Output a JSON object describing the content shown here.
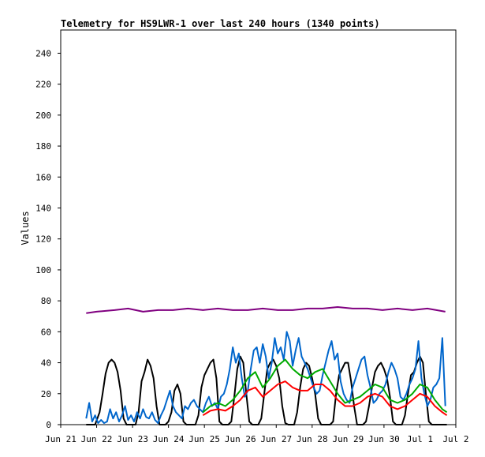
{
  "chart_data": {
    "type": "line",
    "title": "Telemetry for HS9LWR-1 over last 240 hours (1340 points)",
    "xlabel": "",
    "ylabel": "Values",
    "ylim": [
      0,
      255
    ],
    "xlim": [
      0,
      264
    ],
    "yticks": [
      0,
      20,
      40,
      60,
      80,
      100,
      120,
      140,
      160,
      180,
      200,
      220,
      240
    ],
    "xticks": [
      {
        "label": "Jun 21",
        "hour": 0
      },
      {
        "label": "Jun 22",
        "hour": 24
      },
      {
        "label": "Jun 23",
        "hour": 48
      },
      {
        "label": "Jun 24",
        "hour": 72
      },
      {
        "label": "Jun 25",
        "hour": 96
      },
      {
        "label": "Jun 26",
        "hour": 120
      },
      {
        "label": "Jun 27",
        "hour": 144
      },
      {
        "label": "Jun 28",
        "hour": 168
      },
      {
        "label": "Jun 29",
        "hour": 192
      },
      {
        "label": "Jun 30",
        "hour": 216
      },
      {
        "label": "Jul 1",
        "hour": 240
      },
      {
        "label": "Jul 2",
        "hour": 264
      }
    ],
    "grid": false,
    "series": [
      {
        "color": "#800080",
        "x": [
          17,
          24,
          36,
          45,
          55,
          65,
          75,
          85,
          95,
          105,
          115,
          125,
          135,
          145,
          155,
          165,
          175,
          185,
          195,
          205,
          215,
          225,
          235,
          245,
          257
        ],
        "y": [
          72,
          73,
          74,
          75,
          73,
          74,
          74,
          75,
          74,
          75,
          74,
          74,
          75,
          74,
          74,
          75,
          75,
          76,
          75,
          75,
          74,
          75,
          74,
          75,
          73
        ]
      },
      {
        "color": "#000000",
        "x": [
          17,
          20,
          23,
          26,
          28,
          30,
          32,
          34,
          36,
          38,
          40,
          42,
          44,
          46,
          48,
          50,
          52,
          54,
          56,
          58,
          60,
          62,
          64,
          66,
          68,
          70,
          72,
          74,
          76,
          78,
          80,
          82,
          84,
          86,
          88,
          90,
          92,
          94,
          96,
          98,
          100,
          102,
          104,
          106,
          108,
          110,
          112,
          114,
          116,
          118,
          120,
          122,
          124,
          126,
          128,
          130,
          132,
          134,
          136,
          138,
          140,
          142,
          144,
          146,
          148,
          150,
          152,
          154,
          156,
          158,
          160,
          162,
          164,
          166,
          168,
          170,
          172,
          174,
          176,
          178,
          180,
          182,
          184,
          186,
          188,
          190,
          192,
          194,
          196,
          198,
          200,
          202,
          204,
          206,
          208,
          210,
          212,
          214,
          216,
          218,
          220,
          222,
          224,
          226,
          228,
          230,
          232,
          234,
          236,
          238,
          240,
          242,
          244,
          246,
          248,
          250,
          252,
          254,
          256,
          258
        ],
        "y": [
          0,
          0,
          0,
          8,
          20,
          33,
          40,
          42,
          40,
          34,
          22,
          4,
          0,
          0,
          0,
          0,
          8,
          28,
          34,
          42,
          38,
          30,
          12,
          0,
          0,
          0,
          2,
          8,
          22,
          26,
          20,
          2,
          0,
          0,
          0,
          0,
          6,
          24,
          32,
          36,
          40,
          42,
          30,
          2,
          0,
          0,
          0,
          2,
          18,
          36,
          44,
          40,
          20,
          2,
          0,
          0,
          0,
          4,
          20,
          36,
          40,
          42,
          38,
          30,
          12,
          1,
          0,
          0,
          0,
          8,
          24,
          36,
          40,
          38,
          30,
          20,
          4,
          0,
          0,
          0,
          0,
          2,
          20,
          32,
          36,
          40,
          40,
          28,
          12,
          0,
          0,
          0,
          2,
          12,
          24,
          34,
          38,
          40,
          36,
          30,
          18,
          2,
          0,
          0,
          0,
          6,
          20,
          32,
          34,
          40,
          44,
          40,
          20,
          2,
          0,
          0,
          0,
          0,
          0,
          0
        ],
        "width": 2
      },
      {
        "color": "#0066cc",
        "x": [
          17,
          19,
          21,
          23,
          25,
          27,
          29,
          31,
          33,
          35,
          37,
          39,
          41,
          43,
          45,
          47,
          49,
          51,
          53,
          55,
          57,
          59,
          61,
          63,
          65,
          67,
          69,
          71,
          73,
          75,
          77,
          79,
          81,
          83,
          85,
          87,
          89,
          91,
          93,
          95,
          97,
          99,
          101,
          103,
          105,
          107,
          109,
          111,
          113,
          115,
          117,
          119,
          121,
          123,
          125,
          127,
          129,
          131,
          133,
          135,
          137,
          139,
          141,
          143,
          145,
          147,
          149,
          151,
          153,
          155,
          157,
          159,
          161,
          163,
          165,
          167,
          169,
          171,
          173,
          175,
          177,
          179,
          181,
          183,
          185,
          187,
          189,
          191,
          193,
          195,
          197,
          199,
          201,
          203,
          205,
          207,
          209,
          211,
          213,
          215,
          217,
          219,
          221,
          223,
          225,
          227,
          229,
          231,
          233,
          235,
          237,
          239,
          241,
          243,
          245,
          247,
          249,
          251,
          253,
          255,
          257
        ],
        "y": [
          4,
          14,
          2,
          6,
          1,
          3,
          1,
          2,
          10,
          4,
          8,
          2,
          6,
          12,
          3,
          6,
          2,
          8,
          4,
          10,
          5,
          4,
          8,
          3,
          1,
          6,
          10,
          16,
          22,
          12,
          8,
          6,
          4,
          12,
          10,
          14,
          16,
          12,
          10,
          8,
          14,
          18,
          12,
          14,
          10,
          18,
          20,
          26,
          36,
          50,
          40,
          46,
          30,
          18,
          22,
          36,
          48,
          50,
          40,
          52,
          44,
          30,
          40,
          56,
          46,
          50,
          42,
          60,
          54,
          38,
          48,
          56,
          44,
          40,
          36,
          30,
          24,
          20,
          22,
          32,
          40,
          48,
          54,
          42,
          46,
          28,
          20,
          16,
          14,
          24,
          30,
          36,
          42,
          44,
          32,
          24,
          14,
          16,
          20,
          22,
          26,
          34,
          40,
          36,
          30,
          18,
          16,
          20,
          26,
          30,
          36,
          54,
          30,
          20,
          12,
          16,
          24,
          26,
          30,
          56,
          12
        ],
        "width": 2
      },
      {
        "color": "#00aa00",
        "x": [
          95,
          100,
          105,
          110,
          115,
          120,
          125,
          130,
          135,
          140,
          145,
          150,
          155,
          160,
          165,
          170,
          175,
          180,
          185,
          190,
          195,
          200,
          205,
          210,
          215,
          220,
          225,
          230,
          235,
          240,
          245,
          250,
          255,
          258
        ],
        "y": [
          8,
          12,
          14,
          12,
          16,
          22,
          30,
          34,
          24,
          30,
          38,
          42,
          36,
          32,
          30,
          34,
          36,
          28,
          20,
          14,
          16,
          18,
          22,
          26,
          24,
          16,
          14,
          16,
          20,
          26,
          24,
          16,
          10,
          8
        ],
        "width": 2
      },
      {
        "color": "#ff0000",
        "x": [
          95,
          100,
          105,
          110,
          115,
          120,
          125,
          130,
          135,
          140,
          145,
          150,
          155,
          160,
          165,
          170,
          175,
          180,
          185,
          190,
          195,
          200,
          205,
          210,
          215,
          220,
          225,
          230,
          235,
          240,
          245,
          250,
          255,
          258
        ],
        "y": [
          6,
          9,
          10,
          9,
          12,
          16,
          22,
          24,
          18,
          22,
          26,
          28,
          24,
          22,
          22,
          26,
          26,
          22,
          16,
          12,
          12,
          14,
          18,
          20,
          18,
          12,
          10,
          12,
          16,
          20,
          18,
          12,
          8,
          6
        ],
        "width": 2
      }
    ]
  }
}
